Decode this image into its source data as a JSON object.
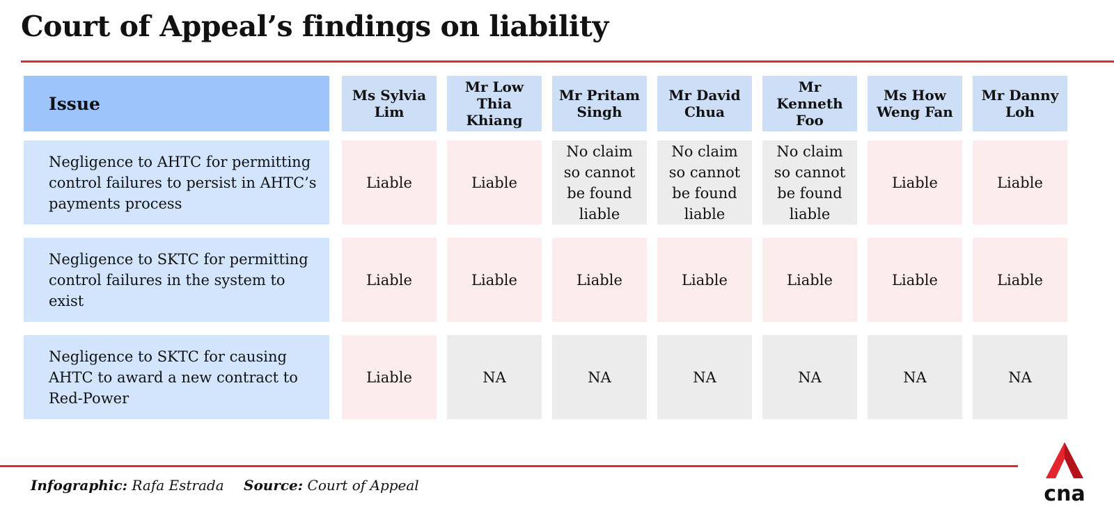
{
  "title": "Court of Appeal’s findings on liability",
  "table": {
    "issue_header": "Issue",
    "columns": [
      "Ms Sylvia Lim",
      "Mr Low Thia Khiang",
      "Mr Pritam Singh",
      "Mr David Chua",
      "Mr Kenneth Foo",
      "Ms How Weng Fan",
      "Mr Danny Loh"
    ],
    "rows": [
      {
        "issue": "Negligence to AHTC for permitting control failures to persist in AHTC’s payments process",
        "values": [
          "Liable",
          "Liable",
          "No claim so cannot be found liable",
          "No claim so cannot be found liable",
          "No claim so cannot be found liable",
          "Liable",
          "Liable"
        ]
      },
      {
        "issue": "Negligence to SKTC  for permitting control failures in the system to exist",
        "values": [
          "Liable",
          "Liable",
          "Liable",
          "Liable",
          "Liable",
          "Liable",
          "Liable"
        ]
      },
      {
        "issue": "Negligence to SKTC  for causing AHTC to award a new contract to Red-Power",
        "values": [
          "Liable",
          "NA",
          "NA",
          "NA",
          "NA",
          "NA",
          "NA"
        ]
      }
    ]
  },
  "chart_data": {
    "type": "table",
    "title": "Court of Appeal’s findings on liability",
    "columns": [
      "Issue",
      "Ms Sylvia Lim",
      "Mr Low Thia Khiang",
      "Mr Pritam Singh",
      "Mr David Chua",
      "Mr Kenneth Foo",
      "Ms How Weng Fan",
      "Mr Danny Loh"
    ],
    "rows": [
      [
        "Negligence to AHTC for permitting control failures to persist in AHTC’s payments process",
        "Liable",
        "Liable",
        "No claim so cannot be found liable",
        "No claim so cannot be found liable",
        "No claim so cannot be found liable",
        "Liable",
        "Liable"
      ],
      [
        "Negligence to SKTC  for permitting control failures in the system to exist",
        "Liable",
        "Liable",
        "Liable",
        "Liable",
        "Liable",
        "Liable",
        "Liable"
      ],
      [
        "Negligence to SKTC  for causing AHTC to award a new contract to Red-Power",
        "Liable",
        "NA",
        "NA",
        "NA",
        "NA",
        "NA",
        "NA"
      ]
    ]
  },
  "footer": {
    "infographic_label": "Infographic:",
    "infographic_value": "Rafa Estrada",
    "source_label": "Source:",
    "source_value": "Court of Appeal"
  },
  "logo": {
    "text": "cna",
    "name": "cna-logo"
  },
  "colors": {
    "accent_red": "#dd2b31",
    "issue_header_bg": "#9dc5fb",
    "name_header_bg": "#cddff6",
    "issue_bg": "#d3e5fd",
    "liable_bg": "#fdecee",
    "na_bg": "#ececec"
  }
}
